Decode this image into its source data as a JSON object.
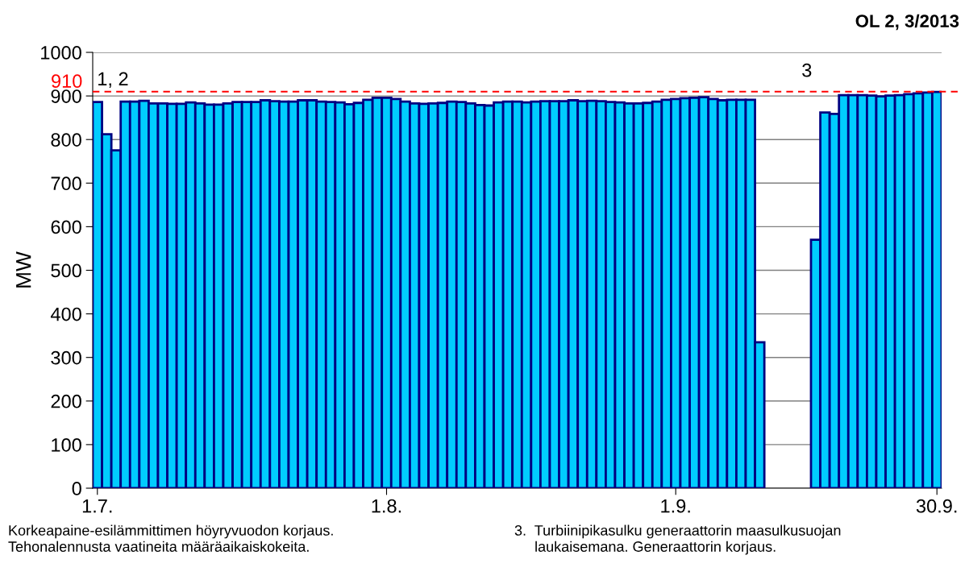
{
  "chart_data": {
    "type": "bar",
    "title": "OL 2, 3/2013",
    "ylabel": "MW",
    "categories": [
      "1.7.",
      null,
      null,
      null,
      null,
      null,
      null,
      null,
      null,
      null,
      null,
      null,
      null,
      null,
      null,
      null,
      null,
      null,
      null,
      null,
      null,
      null,
      null,
      null,
      null,
      null,
      null,
      null,
      null,
      null,
      null,
      "1.8.",
      null,
      null,
      null,
      null,
      null,
      null,
      null,
      null,
      null,
      null,
      null,
      null,
      null,
      null,
      null,
      null,
      null,
      null,
      null,
      null,
      null,
      null,
      null,
      null,
      null,
      null,
      null,
      null,
      null,
      null,
      "1.9.",
      null,
      null,
      null,
      null,
      null,
      null,
      null,
      null,
      null,
      null,
      null,
      null,
      null,
      null,
      null,
      null,
      null,
      null,
      null,
      null,
      null,
      null,
      null,
      null,
      null,
      null,
      null,
      "30.9."
    ],
    "series": [
      {
        "color": "#00ccff",
        "values": [
          886,
          812,
          775,
          887,
          887,
          889,
          883,
          883,
          882,
          882,
          885,
          883,
          880,
          880,
          883,
          886,
          886,
          886,
          890,
          888,
          887,
          887,
          890,
          890,
          887,
          886,
          885,
          881,
          884,
          891,
          896,
          896,
          893,
          887,
          883,
          882,
          883,
          884,
          887,
          886,
          883,
          879,
          878,
          885,
          887,
          887,
          885,
          887,
          888,
          888,
          888,
          890,
          888,
          889,
          888,
          886,
          885,
          883,
          883,
          884,
          887,
          891,
          893,
          895,
          896,
          897,
          893,
          890,
          891,
          891,
          891,
          335,
          null,
          null,
          null,
          null,
          null,
          570,
          862,
          859,
          902,
          902,
          902,
          901,
          899,
          901,
          902,
          904,
          906,
          908,
          909
        ]
      }
    ],
    "ylim": [
      0,
      1000
    ],
    "yticks": [
      0,
      100,
      200,
      300,
      400,
      500,
      600,
      700,
      800,
      900,
      1000
    ],
    "grid": "y",
    "ref_lines": [
      {
        "axis": "y",
        "value": 910,
        "label": "910",
        "color": "#ff0000",
        "line_style": "dashed"
      }
    ],
    "annotations": [
      "1, 2",
      "3",
      "Korkeapaine-esilämmittimen höyryvuodon korjaus.\nTehonalennusta vaatineita määräaikaiskokeita.",
      "3.  Turbiinipikasulku generaattorin maasulkusuojan\n     laukaisemana. Generaattorin korjaus."
    ]
  }
}
